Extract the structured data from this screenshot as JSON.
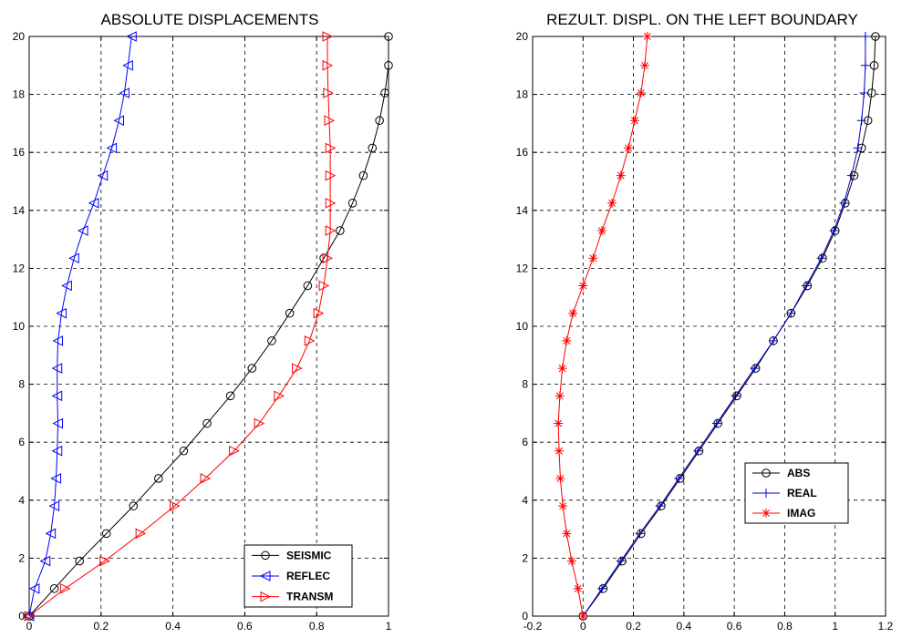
{
  "chart_data": [
    {
      "type": "line",
      "title": "ABSOLUTE DISPLACEMENTS",
      "xlabel": "",
      "ylabel": "",
      "xlim": [
        0,
        1
      ],
      "ylim": [
        0,
        20
      ],
      "xticks": [
        0,
        0.2,
        0.4,
        0.6,
        0.8,
        1
      ],
      "xtick_labels": [
        "0",
        "0.2",
        "0.4",
        "0.6",
        "0.8",
        "1"
      ],
      "yticks": [
        0,
        2,
        4,
        6,
        8,
        10,
        12,
        14,
        16,
        18,
        20
      ],
      "ytick_labels": [
        "0",
        "2",
        "4",
        "6",
        "8",
        "10",
        "12",
        "14",
        "16",
        "18",
        "20"
      ],
      "grid": true,
      "legend_position": "bottom-right",
      "y": [
        0,
        0.95,
        1.9,
        2.85,
        3.8,
        4.75,
        5.7,
        6.65,
        7.6,
        8.55,
        9.5,
        10.45,
        11.4,
        12.35,
        13.3,
        14.25,
        15.2,
        16.15,
        17.1,
        18.05,
        19.0,
        20.0
      ],
      "series": [
        {
          "name": "SEISMIC",
          "color": "#000000",
          "marker": "circle",
          "x": [
            0,
            0.07,
            0.14,
            0.215,
            0.29,
            0.36,
            0.43,
            0.495,
            0.56,
            0.62,
            0.675,
            0.725,
            0.775,
            0.82,
            0.865,
            0.9,
            0.93,
            0.955,
            0.975,
            0.99,
            1.0,
            1.0
          ]
        },
        {
          "name": "REFLEC",
          "color": "#0000ff",
          "marker": "triangle-left",
          "x": [
            0,
            0.015,
            0.045,
            0.06,
            0.07,
            0.075,
            0.078,
            0.08,
            0.078,
            0.078,
            0.08,
            0.09,
            0.105,
            0.125,
            0.15,
            0.18,
            0.205,
            0.23,
            0.25,
            0.265,
            0.275,
            0.285
          ]
        },
        {
          "name": "TRANSM",
          "color": "#ff0000",
          "marker": "triangle-right",
          "x": [
            0,
            0.1,
            0.21,
            0.31,
            0.405,
            0.49,
            0.57,
            0.64,
            0.695,
            0.745,
            0.78,
            0.805,
            0.82,
            0.83,
            0.838,
            0.838,
            0.838,
            0.838,
            0.835,
            0.832,
            0.83,
            0.83
          ]
        }
      ]
    },
    {
      "type": "line",
      "title": "REZULT. DISPL. ON THE LEFT BOUNDARY",
      "xlabel": "",
      "ylabel": "",
      "xlim": [
        -0.2,
        1.2
      ],
      "ylim": [
        0,
        20
      ],
      "xticks": [
        -0.2,
        0,
        0.2,
        0.4,
        0.6,
        0.8,
        1,
        1.2
      ],
      "xtick_labels": [
        "-0.2",
        "0",
        "0.2",
        "0.4",
        "0.6",
        "0.8",
        "1",
        "1.2"
      ],
      "yticks": [
        0,
        2,
        4,
        6,
        8,
        10,
        12,
        14,
        16,
        18,
        20
      ],
      "ytick_labels": [
        "0",
        "2",
        "4",
        "6",
        "8",
        "10",
        "12",
        "14",
        "16",
        "18",
        "20"
      ],
      "grid": true,
      "legend_position": "right-center",
      "y": [
        0,
        0.95,
        1.9,
        2.85,
        3.8,
        4.75,
        5.7,
        6.65,
        7.6,
        8.55,
        9.5,
        10.45,
        11.4,
        12.35,
        13.3,
        14.25,
        15.2,
        16.15,
        17.1,
        18.05,
        19.0,
        20.0
      ],
      "series": [
        {
          "name": "ABS",
          "color": "#000000",
          "marker": "circle",
          "x": [
            0,
            0.08,
            0.155,
            0.23,
            0.31,
            0.385,
            0.46,
            0.535,
            0.61,
            0.685,
            0.755,
            0.825,
            0.89,
            0.95,
            1.0,
            1.04,
            1.075,
            1.105,
            1.13,
            1.145,
            1.155,
            1.16
          ]
        },
        {
          "name": "REAL",
          "color": "#0000cc",
          "marker": "plus",
          "x": [
            0,
            0.075,
            0.15,
            0.225,
            0.305,
            0.38,
            0.455,
            0.53,
            0.605,
            0.68,
            0.755,
            0.825,
            0.885,
            0.945,
            0.995,
            1.035,
            1.065,
            1.09,
            1.105,
            1.115,
            1.12,
            1.12
          ]
        },
        {
          "name": "IMAG",
          "color": "#ff0000",
          "marker": "asterisk",
          "x": [
            0,
            -0.02,
            -0.045,
            -0.065,
            -0.08,
            -0.09,
            -0.095,
            -0.098,
            -0.092,
            -0.082,
            -0.065,
            -0.04,
            0.0,
            0.04,
            0.075,
            0.115,
            0.15,
            0.18,
            0.205,
            0.23,
            0.245,
            0.255
          ]
        }
      ]
    }
  ]
}
